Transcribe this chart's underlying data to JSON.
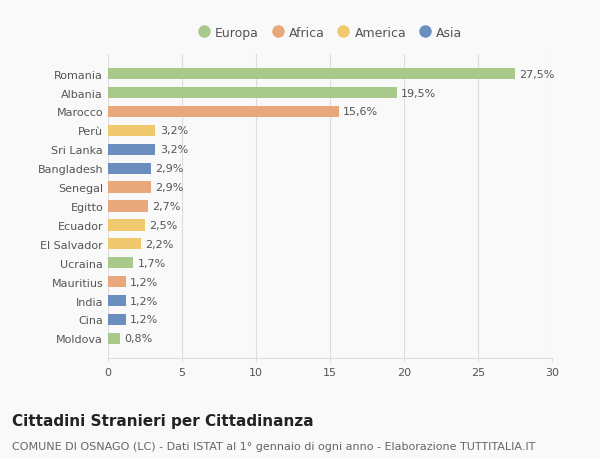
{
  "countries": [
    "Romania",
    "Albania",
    "Marocco",
    "Perù",
    "Sri Lanka",
    "Bangladesh",
    "Senegal",
    "Egitto",
    "Ecuador",
    "El Salvador",
    "Ucraina",
    "Mauritius",
    "India",
    "Cina",
    "Moldova"
  ],
  "values": [
    27.5,
    19.5,
    15.6,
    3.2,
    3.2,
    2.9,
    2.9,
    2.7,
    2.5,
    2.2,
    1.7,
    1.2,
    1.2,
    1.2,
    0.8
  ],
  "labels": [
    "27,5%",
    "19,5%",
    "15,6%",
    "3,2%",
    "3,2%",
    "2,9%",
    "2,9%",
    "2,7%",
    "2,5%",
    "2,2%",
    "1,7%",
    "1,2%",
    "1,2%",
    "1,2%",
    "0,8%"
  ],
  "categories": [
    "Europa",
    "Africa",
    "America",
    "Asia"
  ],
  "bar_colors": [
    "#a8c98a",
    "#a8c98a",
    "#e8a87c",
    "#f0c96e",
    "#6a8fbf",
    "#6a8fbf",
    "#e8a87c",
    "#e8a87c",
    "#f0c96e",
    "#f0c96e",
    "#a8c98a",
    "#e8a87c",
    "#6a8fbf",
    "#6a8fbf",
    "#a8c98a"
  ],
  "legend_colors": [
    "#a8c98a",
    "#e8a87c",
    "#f0c96e",
    "#6a8fbf"
  ],
  "title": "Cittadini Stranieri per Cittadinanza",
  "subtitle": "COMUNE DI OSNAGO (LC) - Dati ISTAT al 1° gennaio di ogni anno - Elaborazione TUTTITALIA.IT",
  "xlim": [
    0,
    30
  ],
  "xticks": [
    0,
    5,
    10,
    15,
    20,
    25,
    30
  ],
  "background_color": "#f9f9f9",
  "grid_color": "#dddddd",
  "bar_height": 0.6,
  "title_fontsize": 11,
  "subtitle_fontsize": 8,
  "label_fontsize": 8,
  "tick_fontsize": 8,
  "legend_fontsize": 9
}
